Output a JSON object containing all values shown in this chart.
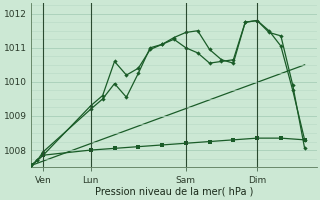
{
  "background_color": "#cce8d4",
  "grid_color_major": "#a8ceb8",
  "grid_color_minor": "#b8d8c4",
  "line_color": "#1a5c28",
  "xlabel": "Pression niveau de la mer( hPa )",
  "ylim": [
    1007.5,
    1012.3
  ],
  "yticks": [
    1008,
    1009,
    1010,
    1011,
    1012
  ],
  "xlim": [
    0,
    24
  ],
  "x_tick_labels": [
    "Ven",
    "Lun",
    "Sam",
    "Dim"
  ],
  "x_tick_pos": [
    1,
    5,
    13,
    19
  ],
  "vlines": [
    1,
    5,
    13,
    19
  ],
  "line1_x": [
    0,
    0.5,
    1,
    5,
    6,
    7,
    8,
    9,
    10,
    11,
    12,
    13,
    14,
    15,
    16,
    17,
    18,
    19,
    20,
    21,
    22,
    23
  ],
  "line1_y": [
    1007.55,
    1007.7,
    1007.85,
    1009.3,
    1009.6,
    1010.6,
    1010.2,
    1010.4,
    1010.95,
    1011.1,
    1011.3,
    1011.45,
    1011.5,
    1010.95,
    1010.65,
    1010.55,
    1011.75,
    1011.8,
    1011.45,
    1011.35,
    1009.9,
    1008.05
  ],
  "line2_x": [
    0,
    0.5,
    1,
    5,
    6,
    7,
    8,
    9,
    10,
    11,
    12,
    13,
    14,
    15,
    16,
    17,
    18,
    19,
    20,
    21,
    22,
    23
  ],
  "line2_y": [
    1007.55,
    1007.7,
    1007.95,
    1009.2,
    1009.5,
    1009.95,
    1009.55,
    1010.25,
    1011.0,
    1011.1,
    1011.25,
    1011.0,
    1010.85,
    1010.55,
    1010.6,
    1010.65,
    1011.75,
    1011.8,
    1011.5,
    1011.05,
    1009.75,
    1008.3
  ],
  "line3_x": [
    0,
    1,
    5,
    7,
    9,
    11,
    13,
    15,
    17,
    19,
    21,
    23
  ],
  "line3_y": [
    1007.55,
    1007.85,
    1008.0,
    1008.05,
    1008.1,
    1008.15,
    1008.2,
    1008.25,
    1008.3,
    1008.35,
    1008.35,
    1008.3
  ],
  "line4_x": [
    0,
    23
  ],
  "line4_y": [
    1007.55,
    1010.5
  ]
}
